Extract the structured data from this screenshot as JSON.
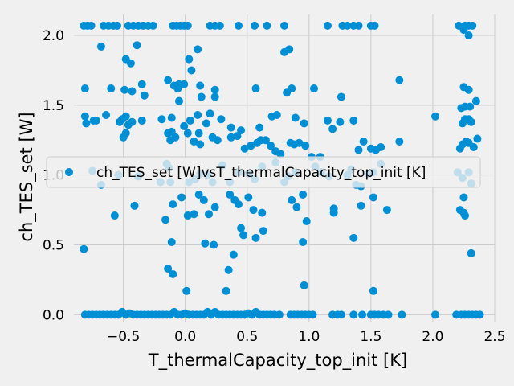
{
  "chart_data": {
    "type": "scatter",
    "title": "",
    "xlabel": "T_thermalCapacity_top_init [K]",
    "ylabel": "ch_TES_set [W]",
    "xlim": [
      -0.9,
      2.5
    ],
    "ylim": [
      -0.05,
      2.15
    ],
    "xticks": [
      -0.5,
      0.0,
      0.5,
      1.0,
      1.5,
      2.0,
      2.5
    ],
    "xtick_labels": [
      "−0.5",
      "0.0",
      "0.5",
      "1.0",
      "1.5",
      "2.0",
      "2.5"
    ],
    "yticks": [
      0.0,
      0.5,
      1.0,
      1.5,
      2.0
    ],
    "ytick_labels": [
      "0.0",
      "0.5",
      "1.0",
      "1.5",
      "2.0"
    ],
    "grid": true,
    "legend": {
      "placement": "center",
      "entries": [
        "ch_TES_set [W]vsT_thermalCapacity_top_init [K]"
      ]
    },
    "colors": {
      "series": "#008fd5",
      "background": "#f0f0f0",
      "grid": "#cbcbcb"
    },
    "series": [
      {
        "name": "ch_TES_set [W]vsT_thermalCapacity_top_init [K]",
        "points": [
          [
            -0.82,
            2.07
          ],
          [
            -0.79,
            2.07
          ],
          [
            -0.76,
            2.07
          ],
          [
            -0.66,
            2.07
          ],
          [
            -0.62,
            2.07
          ],
          [
            -0.58,
            2.07
          ],
          [
            -0.55,
            2.07
          ],
          [
            -0.46,
            2.07
          ],
          [
            -0.42,
            2.07
          ],
          [
            -0.38,
            2.07
          ],
          [
            -0.34,
            2.07
          ],
          [
            -0.3,
            2.07
          ],
          [
            -0.26,
            2.07
          ],
          [
            -0.1,
            2.07
          ],
          [
            -0.07,
            2.07
          ],
          [
            -0.04,
            2.07
          ],
          [
            -0.01,
            2.07
          ],
          [
            0.02,
            2.07
          ],
          [
            0.2,
            2.07
          ],
          [
            0.24,
            2.07
          ],
          [
            0.28,
            2.07
          ],
          [
            0.43,
            2.07
          ],
          [
            0.56,
            2.07
          ],
          [
            0.66,
            2.07
          ],
          [
            0.8,
            2.07
          ],
          [
            1.15,
            2.07
          ],
          [
            1.27,
            2.07
          ],
          [
            1.31,
            2.07
          ],
          [
            1.36,
            2.07
          ],
          [
            1.4,
            2.07
          ],
          [
            1.5,
            2.07
          ],
          [
            1.53,
            2.07
          ],
          [
            2.21,
            2.07
          ],
          [
            2.26,
            2.07
          ],
          [
            2.29,
            2.07
          ],
          [
            2.32,
            2.07
          ],
          [
            -0.68,
            1.92
          ],
          [
            -0.39,
            1.93
          ],
          [
            -0.48,
            1.83
          ],
          [
            -0.44,
            1.8
          ],
          [
            0.1,
            1.9
          ],
          [
            0.05,
            1.75
          ],
          [
            0.03,
            1.83
          ],
          [
            0.8,
            1.88
          ],
          [
            0.84,
            1.9
          ],
          [
            2.25,
            2.04
          ],
          [
            2.29,
            2.0
          ],
          [
            -0.81,
            1.62
          ],
          [
            -0.6,
            1.62
          ],
          [
            -0.49,
            1.61
          ],
          [
            -0.43,
            1.6
          ],
          [
            -0.35,
            1.65
          ],
          [
            -0.33,
            1.57
          ],
          [
            -0.14,
            1.68
          ],
          [
            -0.09,
            1.64
          ],
          [
            -0.05,
            1.65
          ],
          [
            -0.01,
            1.65
          ],
          [
            -0.06,
            1.62
          ],
          [
            -0.05,
            1.53
          ],
          [
            0.12,
            1.64
          ],
          [
            0.13,
            1.56
          ],
          [
            0.24,
            1.61
          ],
          [
            0.24,
            1.56
          ],
          [
            0.57,
            1.62
          ],
          [
            0.82,
            1.59
          ],
          [
            0.86,
            1.62
          ],
          [
            1.04,
            1.62
          ],
          [
            1.26,
            1.56
          ],
          [
            1.73,
            1.68
          ],
          [
            2.25,
            1.63
          ],
          [
            2.29,
            1.61
          ],
          [
            2.35,
            1.53
          ],
          [
            -0.81,
            1.42
          ],
          [
            -0.8,
            1.37
          ],
          [
            -0.74,
            1.39
          ],
          [
            -0.72,
            1.39
          ],
          [
            -0.64,
            1.43
          ],
          [
            -0.53,
            1.38
          ],
          [
            -0.51,
            1.4
          ],
          [
            -0.48,
            1.42
          ],
          [
            -0.46,
            1.36
          ],
          [
            -0.43,
            1.38
          ],
          [
            -0.35,
            1.39
          ],
          [
            -0.19,
            1.4
          ],
          [
            -0.11,
            1.41
          ],
          [
            -0.01,
            1.35
          ],
          [
            0.04,
            1.39
          ],
          [
            0.1,
            1.43
          ],
          [
            0.17,
            1.37
          ],
          [
            0.2,
            1.44
          ],
          [
            0.29,
            1.4
          ],
          [
            0.37,
            1.34
          ],
          [
            0.45,
            1.32
          ],
          [
            0.6,
            1.34
          ],
          [
            0.7,
            1.42
          ],
          [
            0.74,
            1.43
          ],
          [
            0.89,
            1.41
          ],
          [
            0.96,
            1.37
          ],
          [
            1.15,
            1.39
          ],
          [
            1.25,
            1.38
          ],
          [
            1.36,
            1.39
          ],
          [
            2.02,
            1.42
          ],
          [
            2.23,
            1.48
          ],
          [
            2.26,
            1.49
          ],
          [
            2.3,
            1.49
          ],
          [
            2.26,
            1.4
          ],
          [
            2.29,
            1.4
          ],
          [
            2.31,
            1.38
          ],
          [
            2.24,
            1.37
          ],
          [
            -0.5,
            1.27
          ],
          [
            -0.48,
            1.3
          ],
          [
            -0.14,
            1.3
          ],
          [
            -0.12,
            1.25
          ],
          [
            -0.08,
            1.27
          ],
          [
            -0.11,
            1.31
          ],
          [
            0.02,
            1.3
          ],
          [
            0.07,
            1.24
          ],
          [
            0.11,
            1.3
          ],
          [
            0.12,
            1.22
          ],
          [
            0.22,
            1.27
          ],
          [
            0.26,
            1.25
          ],
          [
            0.37,
            1.27
          ],
          [
            0.42,
            1.28
          ],
          [
            0.48,
            1.19
          ],
          [
            0.53,
            1.21
          ],
          [
            0.58,
            1.23
          ],
          [
            0.61,
            1.25
          ],
          [
            0.65,
            1.25
          ],
          [
            0.69,
            1.21
          ],
          [
            0.73,
            1.17
          ],
          [
            0.77,
            1.15
          ],
          [
            0.85,
            1.23
          ],
          [
            0.88,
            1.22
          ],
          [
            0.92,
            1.23
          ],
          [
            0.97,
            1.21
          ],
          [
            1.02,
            1.13
          ],
          [
            1.09,
            1.13
          ],
          [
            1.19,
            1.33
          ],
          [
            1.4,
            1.18
          ],
          [
            1.44,
            1.24
          ],
          [
            1.5,
            1.19
          ],
          [
            1.54,
            1.18
          ],
          [
            1.58,
            1.2
          ],
          [
            1.73,
            1.24
          ],
          [
            2.24,
            1.22
          ],
          [
            2.27,
            1.24
          ],
          [
            2.29,
            1.23
          ],
          [
            2.33,
            1.2
          ],
          [
            2.36,
            1.26
          ],
          [
            2.22,
            1.19
          ],
          [
            -0.75,
            1.03
          ],
          [
            -0.68,
            0.93
          ],
          [
            -0.54,
            1.0
          ],
          [
            -0.38,
            0.99
          ],
          [
            -0.2,
            0.95
          ],
          [
            -0.15,
            1.08
          ],
          [
            -0.13,
            1.05
          ],
          [
            -0.12,
            0.95
          ],
          [
            0.03,
            0.95
          ],
          [
            0.08,
            0.97
          ],
          [
            0.12,
            1.01
          ],
          [
            0.18,
            1.0
          ],
          [
            0.22,
            0.95
          ],
          [
            0.3,
            1.07
          ],
          [
            0.36,
            0.95
          ],
          [
            0.43,
            1.02
          ],
          [
            0.51,
            1.01
          ],
          [
            0.56,
            0.97
          ],
          [
            0.62,
            1.06
          ],
          [
            0.73,
            1.09
          ],
          [
            0.8,
            0.95
          ],
          [
            0.83,
            0.99
          ],
          [
            0.89,
            1.02
          ],
          [
            1.05,
            1.06
          ],
          [
            1.1,
            1.02
          ],
          [
            1.16,
            0.99
          ],
          [
            1.31,
            1.0
          ],
          [
            1.34,
            1.04
          ],
          [
            1.38,
            0.93
          ],
          [
            1.42,
            0.92
          ],
          [
            1.48,
            1.01
          ],
          [
            1.52,
            1.02
          ],
          [
            1.58,
            1.08
          ],
          [
            2.2,
            1.02
          ],
          [
            2.24,
            0.98
          ],
          [
            2.29,
            1.02
          ],
          [
            2.31,
            0.94
          ],
          [
            -0.57,
            0.71
          ],
          [
            -0.41,
            0.78
          ],
          [
            -0.16,
            0.68
          ],
          [
            -0.1,
            0.79
          ],
          [
            -0.03,
            0.84
          ],
          [
            0.02,
            0.71
          ],
          [
            0.07,
            0.72
          ],
          [
            0.11,
            0.86
          ],
          [
            0.15,
            0.82
          ],
          [
            0.19,
            0.72
          ],
          [
            0.24,
            0.77
          ],
          [
            0.36,
            0.86
          ],
          [
            0.4,
            0.82
          ],
          [
            0.43,
            0.79
          ],
          [
            0.51,
            0.84
          ],
          [
            0.55,
            0.75
          ],
          [
            0.62,
            0.73
          ],
          [
            0.86,
            0.82
          ],
          [
            0.9,
            0.77
          ],
          [
            0.95,
            0.86
          ],
          [
            0.98,
            0.67
          ],
          [
            1.2,
            0.76
          ],
          [
            1.2,
            0.73
          ],
          [
            1.42,
            0.78
          ],
          [
            1.52,
            0.84
          ],
          [
            1.63,
            0.75
          ],
          [
            2.25,
            0.84
          ],
          [
            2.22,
            0.75
          ],
          [
            2.25,
            0.73
          ],
          [
            2.26,
            0.71
          ],
          [
            -0.82,
            0.47
          ],
          [
            -0.11,
            0.52
          ],
          [
            0.16,
            0.51
          ],
          [
            0.23,
            0.5
          ],
          [
            0.45,
            0.62
          ],
          [
            0.47,
            0.57
          ],
          [
            0.57,
            0.55
          ],
          [
            0.63,
            0.6
          ],
          [
            0.95,
            0.52
          ],
          [
            1.36,
            0.55
          ],
          [
            2.31,
            0.44
          ],
          [
            0.39,
            0.43
          ],
          [
            -0.14,
            0.33
          ],
          [
            -0.1,
            0.29
          ],
          [
            0.35,
            0.32
          ],
          [
            0.01,
            0.17
          ],
          [
            0.33,
            0.17
          ],
          [
            0.96,
            0.21
          ],
          [
            1.52,
            0.17
          ],
          [
            -0.81,
            0.0
          ],
          [
            -0.78,
            0.0
          ],
          [
            -0.75,
            0.0
          ],
          [
            -0.72,
            0.0
          ],
          [
            -0.69,
            0.0
          ],
          [
            -0.66,
            0.0
          ],
          [
            -0.63,
            0.0
          ],
          [
            -0.6,
            0.0
          ],
          [
            -0.57,
            0.0
          ],
          [
            -0.54,
            0.0
          ],
          [
            -0.51,
            0.02
          ],
          [
            -0.48,
            0.0
          ],
          [
            -0.45,
            0.01
          ],
          [
            -0.42,
            0.0
          ],
          [
            -0.39,
            0.0
          ],
          [
            -0.36,
            0.0
          ],
          [
            -0.33,
            0.0
          ],
          [
            -0.3,
            0.0
          ],
          [
            -0.27,
            0.0
          ],
          [
            -0.24,
            0.0
          ],
          [
            -0.21,
            0.0
          ],
          [
            -0.18,
            0.0
          ],
          [
            -0.15,
            0.0
          ],
          [
            -0.12,
            0.0
          ],
          [
            -0.09,
            0.02
          ],
          [
            -0.06,
            0.0
          ],
          [
            -0.03,
            0.0
          ],
          [
            0.0,
            0.01
          ],
          [
            0.03,
            0.0
          ],
          [
            0.06,
            0.0
          ],
          [
            0.09,
            0.0
          ],
          [
            0.12,
            0.0
          ],
          [
            0.15,
            0.0
          ],
          [
            0.18,
            0.02
          ],
          [
            0.21,
            0.0
          ],
          [
            0.24,
            0.02
          ],
          [
            0.27,
            0.0
          ],
          [
            0.3,
            0.0
          ],
          [
            0.33,
            0.0
          ],
          [
            0.36,
            0.0
          ],
          [
            0.39,
            0.0
          ],
          [
            0.42,
            0.0
          ],
          [
            0.45,
            0.0
          ],
          [
            0.48,
            0.0
          ],
          [
            0.51,
            0.01
          ],
          [
            0.54,
            0.0
          ],
          [
            0.57,
            0.02
          ],
          [
            0.6,
            0.0
          ],
          [
            0.63,
            0.0
          ],
          [
            0.66,
            0.0
          ],
          [
            0.69,
            0.0
          ],
          [
            0.72,
            0.0
          ],
          [
            0.76,
            0.0
          ],
          [
            0.85,
            0.0
          ],
          [
            0.88,
            0.0
          ],
          [
            0.91,
            0.0
          ],
          [
            0.94,
            0.0
          ],
          [
            0.97,
            0.0
          ],
          [
            1.0,
            0.0
          ],
          [
            1.03,
            0.0
          ],
          [
            1.19,
            0.0
          ],
          [
            1.23,
            0.0
          ],
          [
            1.26,
            0.0
          ],
          [
            1.36,
            0.0
          ],
          [
            1.43,
            0.0
          ],
          [
            1.5,
            0.0
          ],
          [
            1.53,
            0.0
          ],
          [
            1.56,
            0.0
          ],
          [
            1.6,
            0.0
          ],
          [
            1.64,
            0.0
          ],
          [
            1.75,
            0.0
          ],
          [
            2.02,
            0.0
          ],
          [
            2.19,
            0.0
          ],
          [
            2.23,
            0.0
          ],
          [
            2.26,
            0.0
          ],
          [
            2.29,
            0.0
          ],
          [
            2.32,
            0.0
          ],
          [
            2.35,
            0.0
          ],
          [
            2.38,
            0.0
          ]
        ]
      }
    ]
  }
}
